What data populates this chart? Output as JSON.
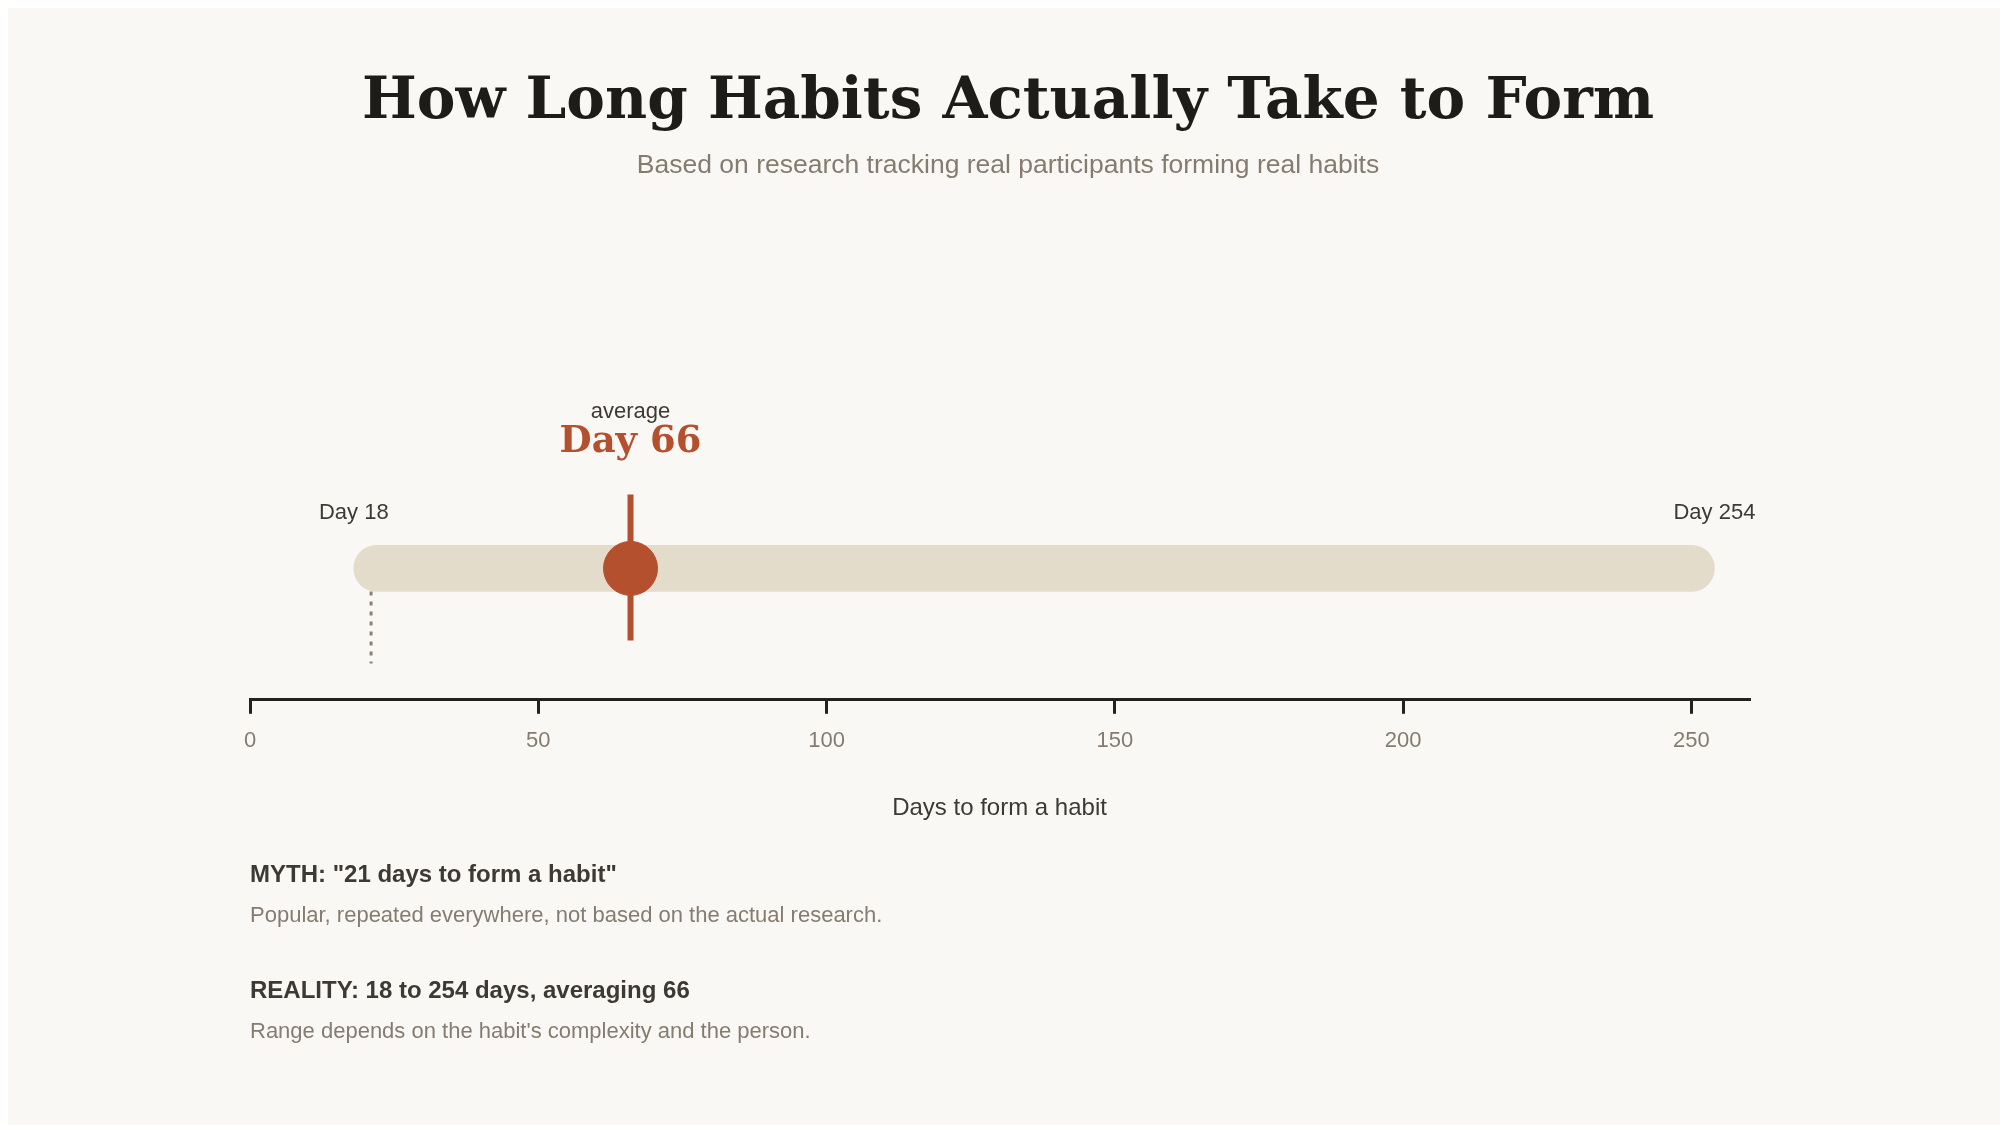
{
  "chart_data": {
    "type": "bar",
    "orientation": "horizontal",
    "title": "How Long Habits Actually Take to Form",
    "subtitle": "Based on research tracking real participants forming real habits",
    "xlabel": "Days to form a habit",
    "categories": [
      null
    ],
    "series": [
      {
        "values": [
          236
        ],
        "base": [
          18
        ],
        "color": "#e3dccb"
      },
      {
        "type": "scatter",
        "values": [
          66
        ],
        "color": "#b5502f"
      }
    ],
    "marker": "circle",
    "grid": false,
    "xlim": [
      0,
      260
    ],
    "xticks": [
      0,
      50,
      100,
      150,
      200,
      250
    ],
    "ref_lines": [
      {
        "axis": "x",
        "value": 66,
        "label": "Day 66",
        "color": "#b5502f",
        "line_style": "solid"
      },
      {
        "axis": "x",
        "value": 21,
        "label": null,
        "color": "#8a8278",
        "line_style": "dotted"
      }
    ],
    "annotations": [
      "average",
      "Day 18",
      "Day 254",
      "MYTH: \"21 days to form a habit\"",
      "Popular, repeated everywhere, not based on the actual research.",
      "REALITY: 18 to 254 days, averaging 66",
      "Range depends on the habit's complexity and the person."
    ]
  }
}
